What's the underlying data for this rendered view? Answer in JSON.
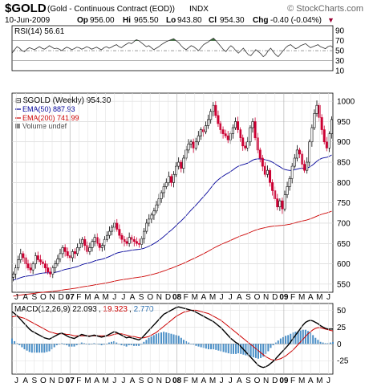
{
  "header": {
    "symbol": "$GOLD",
    "name": "(Gold - Continuous Contract (EOD))",
    "exchange": "INDX",
    "watermark": "© StockCharts.com",
    "date": "10-Jun-2009",
    "open_label": "Op",
    "open": "956.00",
    "high_label": "Hi",
    "high": "965.50",
    "low_label": "Lo",
    "low": "943.80",
    "close_label": "Cl",
    "close": "954.30",
    "change_label": "Chg",
    "change": "-0.40 (-0.04%)",
    "change_marker": "▼"
  },
  "colors": {
    "rsi_line": "#333333",
    "rsi_fill_over": "#3a7a3a",
    "candle": "#000000",
    "candle_down": "#cc0033",
    "ema50": "#000099",
    "ema200": "#cc0000",
    "volume": "#888888",
    "macd_line": "#000000",
    "macd_signal": "#cc0000",
    "macd_hist": "#4a8fc7"
  },
  "chart_data": [
    {
      "type": "line",
      "panel": "rsi",
      "label": "RSI(14) 56.61",
      "ylim": [
        10,
        100
      ],
      "yticks": [
        90,
        70,
        50,
        30,
        10
      ],
      "reference_lines": [
        70,
        50,
        30
      ],
      "series": [
        {
          "name": "RSI(14)",
          "values": [
            45,
            52,
            58,
            55,
            50,
            48,
            53,
            56,
            54,
            52,
            55,
            58,
            55,
            53,
            56,
            60,
            57,
            54,
            55,
            53,
            50,
            54,
            57,
            55,
            52,
            54,
            57,
            56,
            53,
            55,
            58,
            56,
            53,
            55,
            57,
            54,
            52,
            56,
            58,
            55,
            57,
            60,
            62,
            58,
            56,
            60,
            63,
            66,
            64,
            68,
            72,
            70,
            66,
            62,
            58,
            60,
            56,
            52,
            55,
            58,
            62,
            65,
            68,
            70,
            72,
            74,
            70,
            66,
            60,
            55,
            52,
            56,
            60,
            58,
            54,
            50,
            56,
            62,
            65,
            68,
            72,
            75,
            70,
            64,
            58,
            52,
            48,
            55,
            60,
            56,
            50,
            45,
            50,
            55,
            48,
            42,
            40,
            46,
            52,
            48,
            44,
            38,
            42,
            50,
            55,
            48,
            42,
            38,
            44,
            50,
            56,
            60,
            62,
            58,
            54,
            56,
            60,
            62,
            64,
            60,
            56,
            58,
            60,
            62,
            58,
            56,
            54,
            58,
            60,
            56.61
          ]
        }
      ]
    },
    {
      "type": "candlestick",
      "panel": "price",
      "title": "$GOLD (Weekly) 954.30",
      "ylim": [
        530,
        1020
      ],
      "yticks": [
        1000,
        950,
        900,
        850,
        800,
        750,
        700,
        650,
        600,
        550
      ],
      "xticks": [
        "J",
        "A",
        "S",
        "O",
        "N",
        "D",
        "07",
        "F",
        "M",
        "A",
        "M",
        "J",
        "J",
        "A",
        "S",
        "O",
        "N",
        "D",
        "08",
        "F",
        "M",
        "A",
        "M",
        "J",
        "J",
        "A",
        "S",
        "O",
        "N",
        "D",
        "09",
        "F",
        "M",
        "A",
        "M",
        "J"
      ],
      "legend": [
        {
          "name": "$GOLD (Weekly)",
          "value": "954.30"
        },
        {
          "name": "EMA(50)",
          "value": "887.93"
        },
        {
          "name": "EMA(200)",
          "value": "741.99"
        },
        {
          "name": "Volume",
          "value": "undef"
        }
      ],
      "close": [
        575,
        590,
        610,
        625,
        615,
        600,
        590,
        585,
        600,
        620,
        610,
        605,
        600,
        590,
        580,
        575,
        590,
        600,
        612,
        625,
        640,
        630,
        620,
        615,
        630,
        625,
        640,
        650,
        660,
        645,
        630,
        640,
        655,
        665,
        650,
        640,
        645,
        660,
        670,
        680,
        690,
        700,
        685,
        670,
        660,
        655,
        650,
        665,
        660,
        655,
        650,
        648,
        662,
        680,
        700,
        710,
        720,
        730,
        745,
        760,
        775,
        790,
        800,
        815,
        800,
        820,
        840,
        850,
        835,
        860,
        880,
        895,
        900,
        885,
        900,
        915,
        930,
        925,
        940,
        955,
        975,
        990,
        965,
        945,
        930,
        920,
        915,
        905,
        920,
        935,
        950,
        930,
        910,
        890,
        885,
        900,
        935,
        950,
        910,
        880,
        860,
        840,
        820,
        830,
        800,
        780,
        760,
        740,
        755,
        735,
        770,
        790,
        810,
        840,
        860,
        880,
        870,
        845,
        830,
        850,
        900,
        935,
        970,
        990,
        960,
        930,
        900,
        885,
        920,
        955
      ]
    },
    {
      "type": "line",
      "panel": "macd",
      "label": "MACD(12,26,9)",
      "macd": "22.093",
      "signal": "19.323",
      "histogram": "2.770",
      "ylim": [
        -45,
        60
      ],
      "yticks": [
        50,
        25,
        0,
        -25
      ],
      "series": [
        {
          "name": "MACD",
          "values": [
            48,
            45,
            42,
            38,
            34,
            30,
            26,
            22,
            19,
            17,
            15,
            13,
            11,
            9,
            8,
            7,
            9,
            11,
            13,
            15,
            16,
            14,
            12,
            10,
            9,
            8,
            10,
            12,
            14,
            13,
            12,
            11,
            12,
            13,
            12,
            11,
            10,
            11,
            12,
            14,
            16,
            18,
            17,
            15,
            13,
            11,
            9,
            10,
            9,
            8,
            7,
            6,
            8,
            12,
            16,
            20,
            24,
            28,
            32,
            36,
            40,
            44,
            46,
            48,
            50,
            52,
            54,
            55,
            54,
            53,
            52,
            51,
            50,
            49,
            47,
            45,
            43,
            41,
            39,
            37,
            35,
            33,
            30,
            27,
            24,
            20,
            16,
            12,
            8,
            5,
            2,
            0,
            -4,
            -8,
            -12,
            -16,
            -20,
            -24,
            -28,
            -32,
            -34,
            -35,
            -34,
            -32,
            -29,
            -26,
            -22,
            -18,
            -14,
            -10,
            -6,
            -2,
            3,
            8,
            13,
            18,
            23,
            28,
            32,
            34,
            35,
            34,
            32,
            30,
            27,
            25,
            23,
            22,
            22,
            22.093
          ]
        },
        {
          "name": "Signal",
          "values": [
            40,
            41,
            41,
            40,
            39,
            38,
            36,
            34,
            32,
            30,
            28,
            26,
            24,
            22,
            20,
            18,
            17,
            16,
            15,
            15,
            15,
            15,
            14,
            14,
            13,
            12,
            12,
            12,
            12,
            12,
            12,
            12,
            12,
            12,
            12,
            12,
            12,
            12,
            12,
            12,
            13,
            14,
            15,
            15,
            15,
            14,
            13,
            12,
            11,
            11,
            10,
            9,
            9,
            9,
            10,
            11,
            13,
            15,
            17,
            20,
            23,
            26,
            29,
            32,
            35,
            38,
            41,
            43,
            45,
            47,
            48,
            49,
            50,
            50,
            50,
            49,
            48,
            47,
            46,
            45,
            43,
            41,
            39,
            37,
            35,
            32,
            29,
            26,
            23,
            20,
            17,
            14,
            11,
            8,
            5,
            2,
            -1,
            -4,
            -7,
            -10,
            -13,
            -16,
            -19,
            -21,
            -23,
            -24,
            -24,
            -23,
            -22,
            -20,
            -18,
            -15,
            -12,
            -9,
            -5,
            -1,
            3,
            7,
            11,
            15,
            18,
            21,
            23,
            24,
            24,
            23,
            22,
            21,
            20,
            19.323
          ]
        }
      ]
    }
  ]
}
